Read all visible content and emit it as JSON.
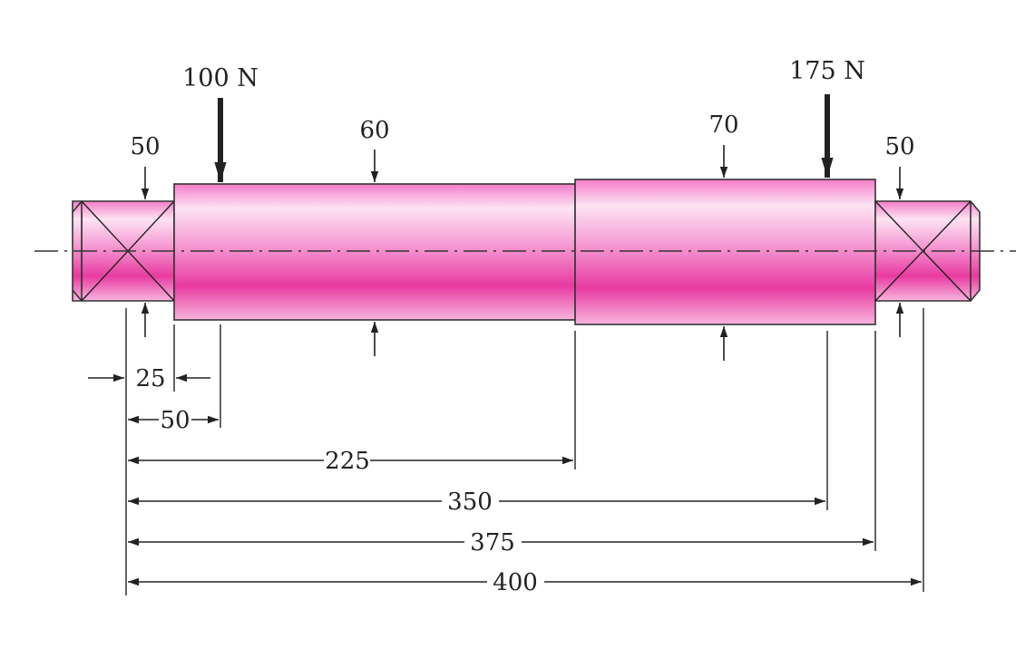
{
  "loads": {
    "left": "100 N",
    "right": "175 N"
  },
  "diameters": {
    "left_bearing": "50",
    "section_60": "60",
    "section_70": "70",
    "right_bearing": "50"
  },
  "lengths": {
    "d25": "25",
    "d50": "50",
    "d225": "225",
    "d350": "350",
    "d375": "375",
    "d400": "400"
  },
  "colors": {
    "shaft_dark": "#e83aa0",
    "shaft_mid": "#f06cc0",
    "shaft_light": "#fbd3ec",
    "line": "#222222"
  }
}
